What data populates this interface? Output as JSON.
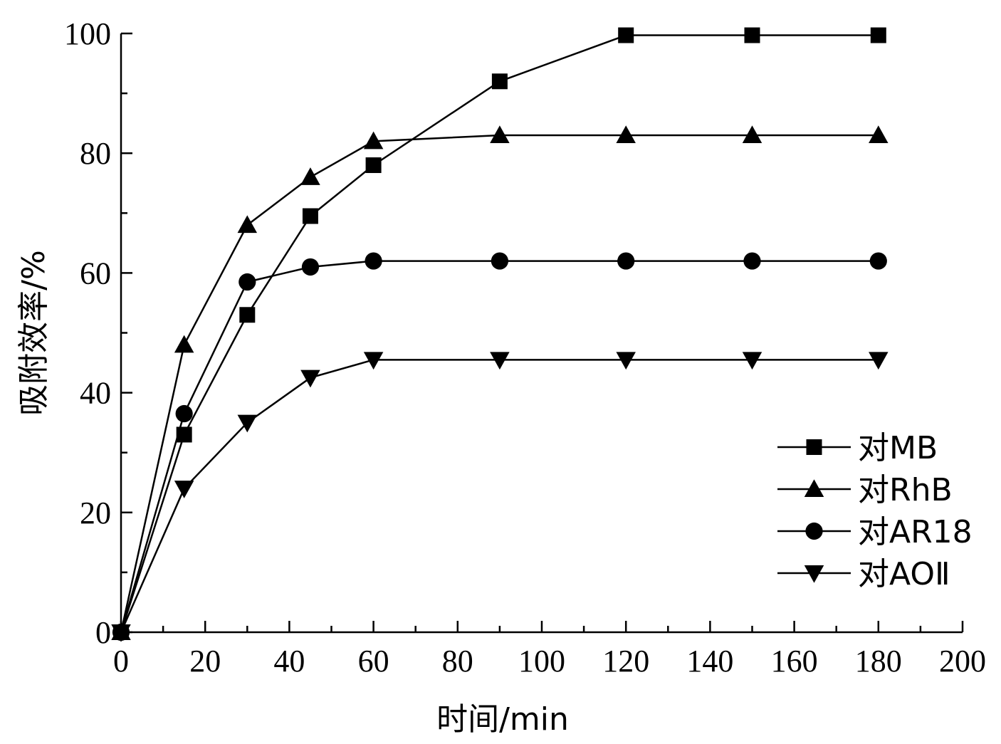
{
  "chart_data": {
    "type": "line",
    "xlabel": "时间/min",
    "ylabel": "吸附效率/%",
    "xlim": [
      0,
      200
    ],
    "ylim": [
      0,
      100
    ],
    "x_ticks": [
      "0",
      "20",
      "40",
      "60",
      "80",
      "100",
      "120",
      "140",
      "160",
      "180",
      "200"
    ],
    "y_ticks": [
      "0",
      "20",
      "40",
      "60",
      "80",
      "100"
    ],
    "grid": false,
    "legend_position": "right-middle",
    "series": [
      {
        "name": "对MB",
        "marker": "square",
        "x": [
          0,
          15,
          30,
          45,
          60,
          90,
          120,
          150,
          180
        ],
        "y": [
          0,
          33,
          53,
          69.5,
          78,
          92,
          99.7,
          99.7,
          99.7
        ]
      },
      {
        "name": "对RhB",
        "marker": "triangle-up",
        "x": [
          0,
          15,
          30,
          45,
          60,
          90,
          120,
          150,
          180
        ],
        "y": [
          0,
          48,
          68,
          76,
          82,
          83,
          83,
          83,
          83
        ]
      },
      {
        "name": "对AR18",
        "marker": "circle",
        "x": [
          0,
          15,
          30,
          45,
          60,
          90,
          120,
          150,
          180
        ],
        "y": [
          0,
          36.5,
          58.5,
          61,
          62,
          62,
          62,
          62,
          62
        ]
      },
      {
        "name": "对AOⅡ",
        "marker": "triangle-down",
        "x": [
          0,
          15,
          30,
          45,
          60,
          90,
          120,
          150,
          180
        ],
        "y": [
          0,
          24,
          35,
          42.5,
          45.5,
          45.5,
          45.5,
          45.5,
          45.5
        ]
      }
    ]
  }
}
